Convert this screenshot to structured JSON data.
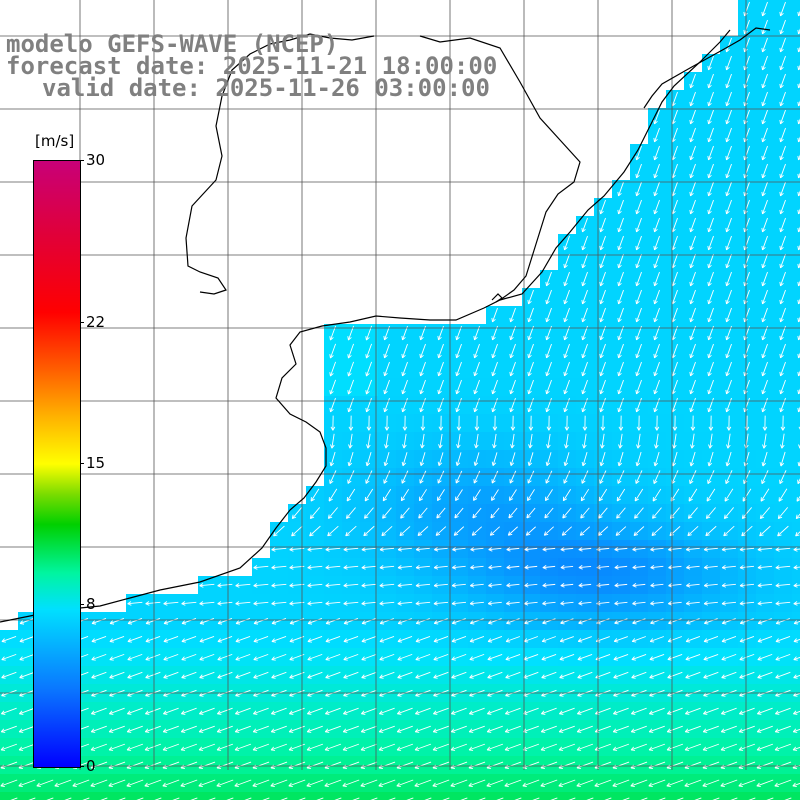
{
  "title": {
    "line1": "modelo GEFS-WAVE (NCEP)",
    "line2": "forecast date: 2025-11-21 18:00:00",
    "line3": "valid date: 2025-11-26 03:00:00"
  },
  "legend": {
    "unit": "[m/s]",
    "ticks": [
      {
        "label": "30",
        "value": 30
      },
      {
        "label": "22",
        "value": 22
      },
      {
        "label": "15",
        "value": 15
      },
      {
        "label": "8",
        "value": 8
      },
      {
        "label": "0",
        "value": 0
      }
    ],
    "colors": [
      "#0000ff",
      "#0a78ff",
      "#00e0ff",
      "#00f5a0",
      "#00d000",
      "#7adc00",
      "#ffff00",
      "#ffb000",
      "#ff5a00",
      "#ff0000",
      "#c80078"
    ]
  },
  "colors": {
    "background": "#ffffff",
    "coastline": "#000000",
    "grid": "#555555",
    "vector": "#ffffff"
  },
  "icons": {
    "wind-vector": "arrow-icon"
  }
}
